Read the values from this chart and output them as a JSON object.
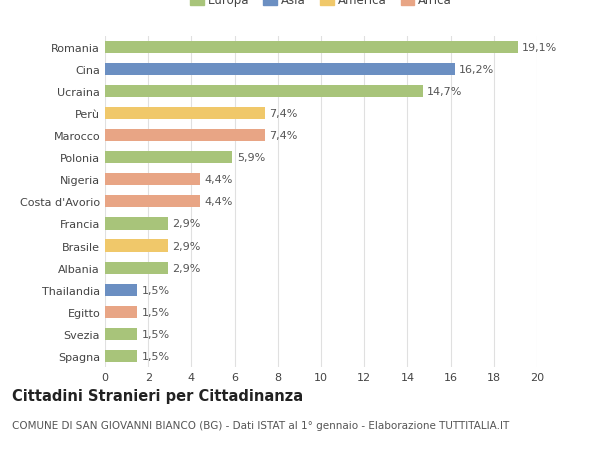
{
  "categories": [
    "Spagna",
    "Svezia",
    "Egitto",
    "Thailandia",
    "Albania",
    "Brasile",
    "Francia",
    "Costa d'Avorio",
    "Nigeria",
    "Polonia",
    "Marocco",
    "Perù",
    "Ucraina",
    "Cina",
    "Romania"
  ],
  "values": [
    1.5,
    1.5,
    1.5,
    1.5,
    2.9,
    2.9,
    2.9,
    4.4,
    4.4,
    5.9,
    7.4,
    7.4,
    14.7,
    16.2,
    19.1
  ],
  "colors": [
    "#a8c47a",
    "#a8c47a",
    "#e8a585",
    "#6b8fc2",
    "#a8c47a",
    "#f0c86a",
    "#a8c47a",
    "#e8a585",
    "#e8a585",
    "#a8c47a",
    "#e8a585",
    "#f0c86a",
    "#a8c47a",
    "#6b8fc2",
    "#a8c47a"
  ],
  "labels": [
    "1,5%",
    "1,5%",
    "1,5%",
    "1,5%",
    "2,9%",
    "2,9%",
    "2,9%",
    "4,4%",
    "4,4%",
    "5,9%",
    "7,4%",
    "7,4%",
    "14,7%",
    "16,2%",
    "19,1%"
  ],
  "legend": [
    {
      "label": "Europa",
      "color": "#a8c47a"
    },
    {
      "label": "Asia",
      "color": "#6b8fc2"
    },
    {
      "label": "America",
      "color": "#f0c86a"
    },
    {
      "label": "Africa",
      "color": "#e8a585"
    }
  ],
  "title": "Cittadini Stranieri per Cittadinanza",
  "subtitle": "COMUNE DI SAN GIOVANNI BIANCO (BG) - Dati ISTAT al 1° gennaio - Elaborazione TUTTITALIA.IT",
  "xlim": [
    0,
    20
  ],
  "xticks": [
    0,
    2,
    4,
    6,
    8,
    10,
    12,
    14,
    16,
    18,
    20
  ],
  "background_color": "#ffffff",
  "grid_color": "#e0e0e0",
  "bar_height": 0.55,
  "label_fontsize": 8,
  "tick_fontsize": 8,
  "title_fontsize": 10.5,
  "subtitle_fontsize": 7.5
}
